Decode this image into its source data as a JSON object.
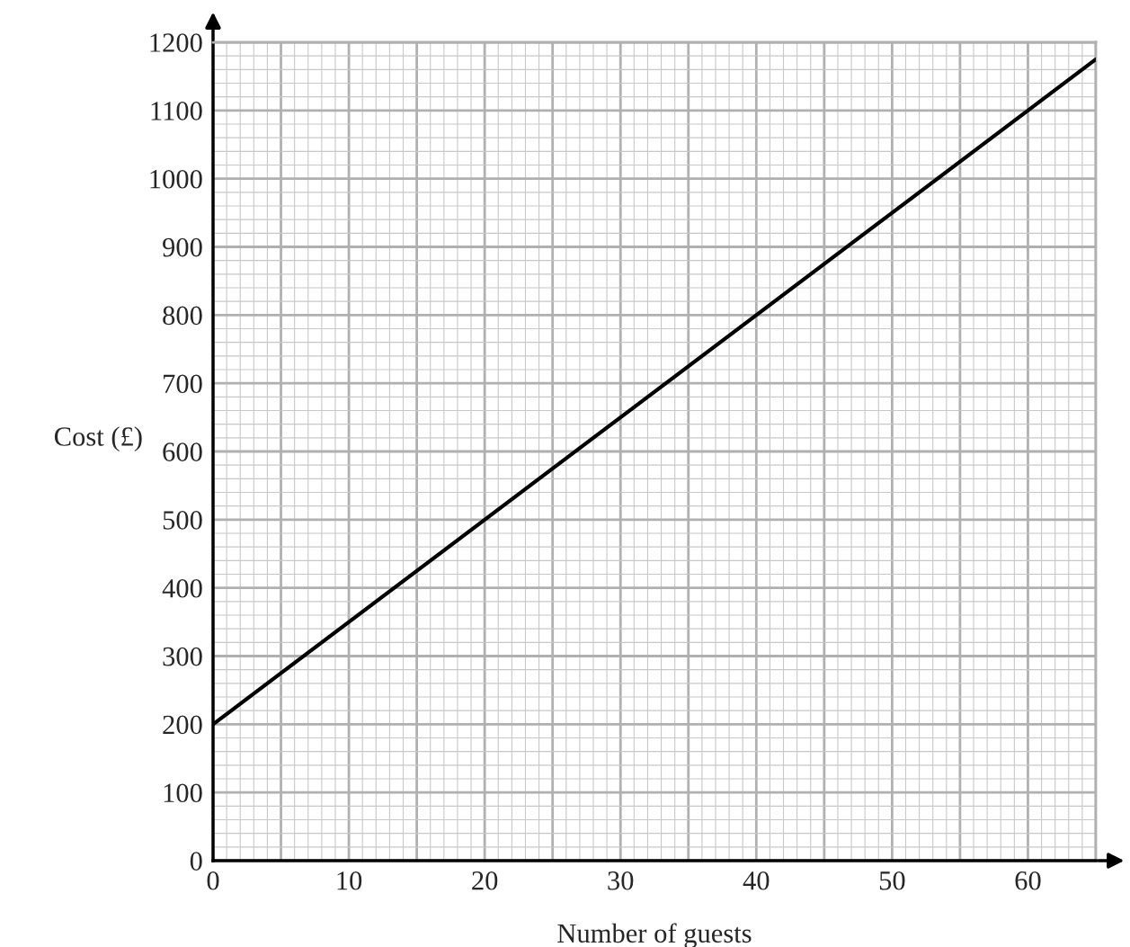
{
  "chart_data": {
    "type": "line",
    "xlabel": "Number of guests",
    "ylabel": "Cost (£)",
    "x": [
      0,
      65
    ],
    "series": [
      {
        "color": "#000000",
        "values": [
          200,
          1175
        ]
      }
    ],
    "xlim": [
      0,
      65
    ],
    "ylim": [
      0,
      1200
    ],
    "xticks": [
      0,
      10,
      20,
      30,
      40,
      50,
      60
    ],
    "yticks": [
      0,
      100,
      200,
      300,
      400,
      500,
      600,
      700,
      800,
      900,
      1000,
      1100,
      1200
    ],
    "grid": true,
    "marker": "none",
    "line_style": "solid",
    "legend": false
  }
}
